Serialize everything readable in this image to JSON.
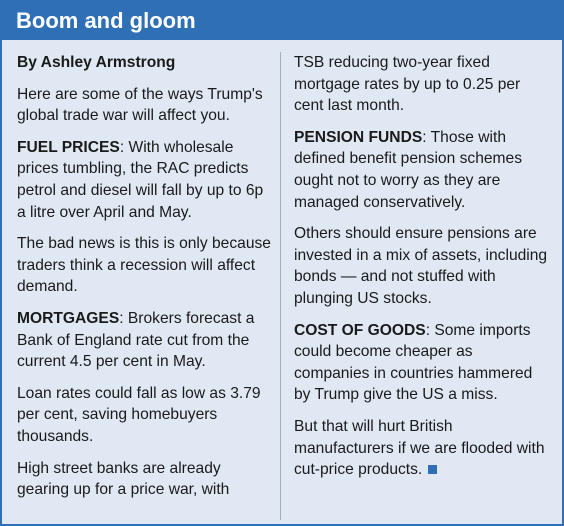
{
  "header": {
    "title": "Boom and gloom"
  },
  "byline": "By Ashley Armstrong",
  "left_column": [
    {
      "text": "Here are some of the ways Trump's global trade war will affect you."
    },
    {
      "lead": "FUEL PRICES",
      "text": ": With wholesale prices tumbling, the RAC predicts petrol and diesel will fall by up to 6p a litre over April and May."
    },
    {
      "text": "The bad news is this is only because traders think a recession will affect demand."
    },
    {
      "lead": "MORTGAGES",
      "text": ": Brokers forecast a Bank of England rate cut from the current 4.5 per cent in May."
    },
    {
      "text": "Loan rates could fall as low as 3.79 per cent, saving homebuyers thousands."
    },
    {
      "text": "High street banks are already gearing up for a price war, with"
    }
  ],
  "right_column": [
    {
      "text": "TSB reducing two-year fixed mortgage rates by up to 0.25 per cent last month."
    },
    {
      "lead": "PENSION FUNDS",
      "text": ": Those with defined benefit pension schemes ought not to worry as they are managed conservatively."
    },
    {
      "text": "Others should ensure pensions are invested in a mix of assets, including bonds — and not stuffed with plunging US stocks."
    },
    {
      "lead": "COST OF GOODS",
      "text": ": Some imports could become cheaper as companies in countries hammered by Trump give the US a miss."
    },
    {
      "text": "But that will hurt British manufacturers if we are flooded with cut-price products."
    }
  ]
}
